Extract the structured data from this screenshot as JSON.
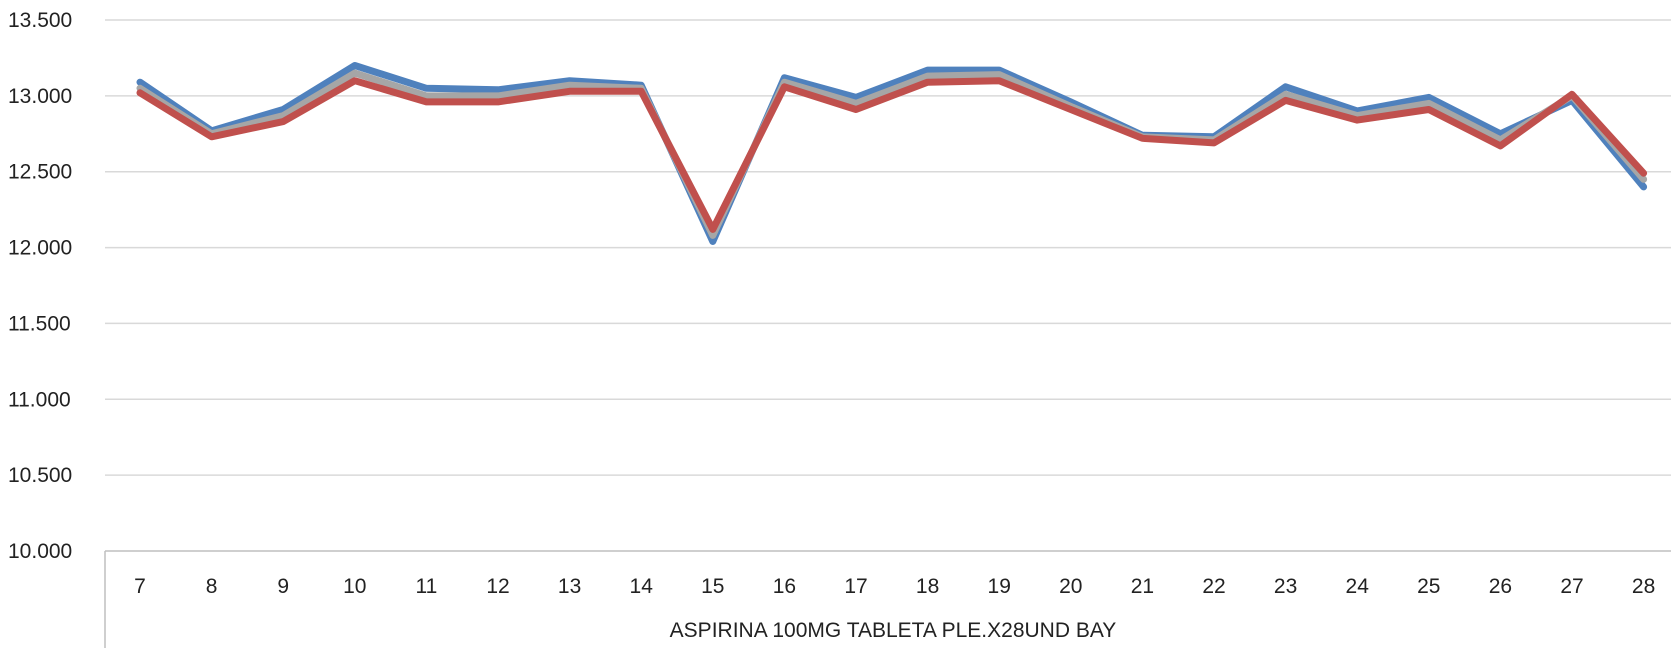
{
  "chart_data": {
    "type": "line",
    "title": "",
    "xlabel": "ASPIRINA 100MG TABLETA PLE.X28UND BAY",
    "ylabel": "",
    "categories": [
      "7",
      "8",
      "9",
      "10",
      "11",
      "12",
      "13",
      "14",
      "15",
      "16",
      "17",
      "18",
      "19",
      "20",
      "21",
      "22",
      "23",
      "24",
      "25",
      "26",
      "27",
      "28"
    ],
    "y_tick_labels": [
      "10.000",
      "10.500",
      "11.000",
      "11.500",
      "12.000",
      "12.500",
      "13.000",
      "13.500"
    ],
    "y_ticks": [
      10000,
      10500,
      11000,
      11500,
      12000,
      12500,
      13000,
      13500
    ],
    "ylim": [
      10000,
      13500
    ],
    "grid": true,
    "legend": "none",
    "series": [
      {
        "color": "#4f81bd",
        "values": [
          13090,
          12770,
          12910,
          13200,
          13050,
          13040,
          13100,
          13070,
          12040,
          13120,
          12990,
          13170,
          13170,
          12960,
          12740,
          12730,
          13060,
          12900,
          12990,
          12750,
          12970,
          12400
        ]
      },
      {
        "color": "#a6a6a6",
        "values": [
          13050,
          12750,
          12870,
          13150,
          13000,
          13000,
          13070,
          13050,
          12080,
          13090,
          12950,
          13130,
          13140,
          12930,
          12730,
          12710,
          13010,
          12870,
          12950,
          12710,
          13000,
          12450
        ]
      },
      {
        "color": "#c0504d",
        "values": [
          13020,
          12730,
          12830,
          13100,
          12960,
          12960,
          13030,
          13030,
          12120,
          13060,
          12910,
          13090,
          13100,
          12910,
          12720,
          12690,
          12970,
          12840,
          12910,
          12670,
          13010,
          12490
        ]
      }
    ]
  }
}
